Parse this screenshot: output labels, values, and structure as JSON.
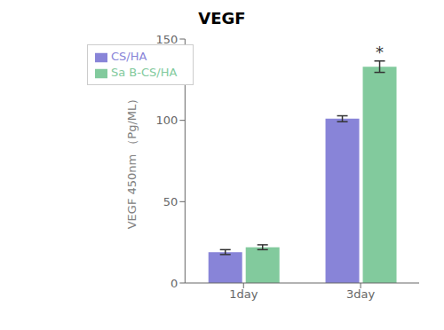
{
  "chart_data": {
    "type": "bar",
    "title": "VEGF",
    "ylabel": "VEGF 450nm （Pg/ML）",
    "categories": [
      "1day",
      "3day"
    ],
    "series": [
      {
        "name": "CS/HA",
        "color": "#8884d8",
        "values": [
          19,
          101
        ],
        "errors": [
          1.5,
          1.8
        ]
      },
      {
        "name": "Sa B-CS/HA",
        "color": "#82ca9d",
        "values": [
          22,
          133
        ],
        "errors": [
          1.5,
          3.5
        ]
      }
    ],
    "ylim": [
      0,
      150
    ],
    "yticks": [
      0,
      50,
      100,
      150
    ],
    "grid": false,
    "legend": "upper left",
    "annotations": [
      {
        "text": "*",
        "x": "3day",
        "series": "Sa B-CS/HA"
      }
    ]
  }
}
